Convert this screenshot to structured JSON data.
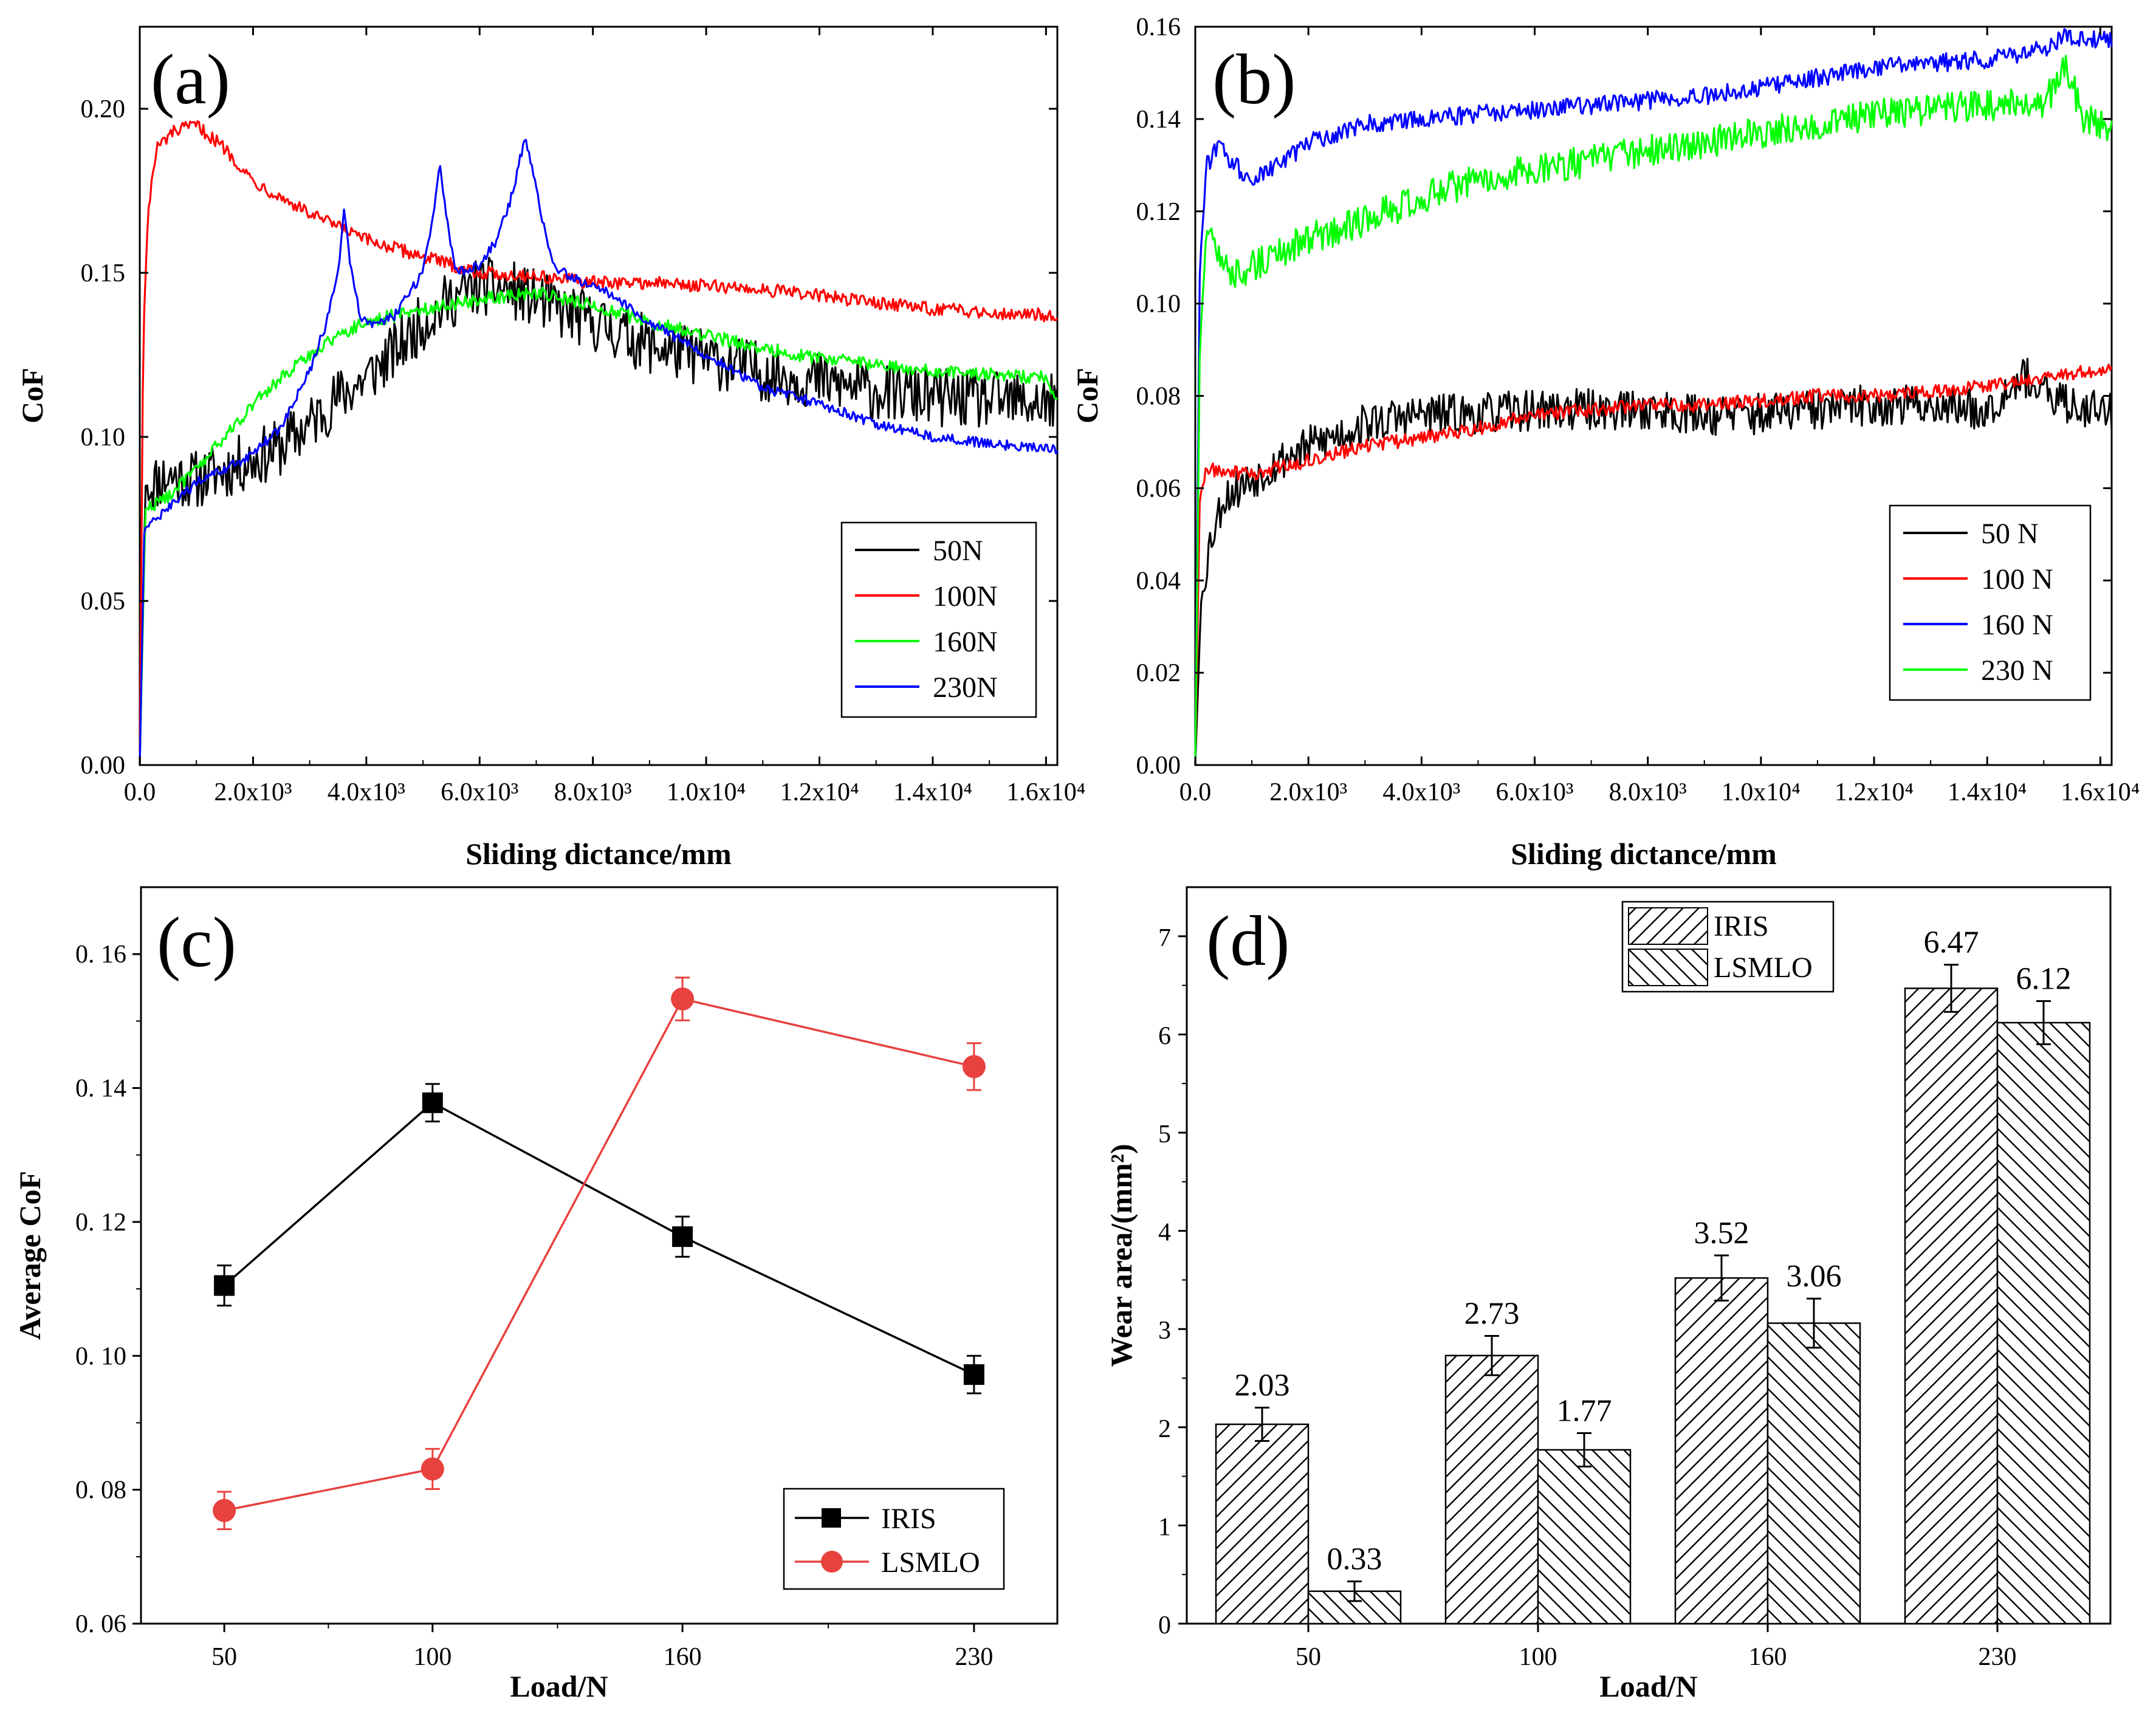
{
  "figure": {
    "panels": [
      "(a)",
      "(b)",
      "(c)",
      "(d)"
    ]
  },
  "chart_data": [
    {
      "id": "a",
      "type": "line",
      "title": "(a)",
      "xlabel": "Sliding dictance/mm",
      "ylabel": "CoF",
      "xlim": [
        0,
        16200
      ],
      "ylim": [
        0,
        0.225
      ],
      "xticks": [
        0,
        2000,
        4000,
        6000,
        8000,
        10000,
        12000,
        14000,
        16000
      ],
      "xtick_labels": [
        "0.0",
        "2.0x10³",
        "4.0x10³",
        "6.0x10³",
        "8.0x10³",
        "1.0x10⁴",
        "1.2x10⁴",
        "1.4x10⁴",
        "1.6x10⁴"
      ],
      "yticks": [
        0,
        0.05,
        0.1,
        0.15,
        0.2
      ],
      "ytick_labels": [
        "0.00",
        "0.05",
        "0.10",
        "0.15",
        "0.20"
      ],
      "legend_position": "bottom-right",
      "series": [
        {
          "name": "50N",
          "color": "#000000",
          "noise": 0.009,
          "x": [
            0,
            100,
            500,
            1000,
            1500,
            2000,
            2500,
            3000,
            3500,
            4000,
            4500,
            5000,
            5500,
            6000,
            6500,
            7000,
            7500,
            8000,
            9000,
            10000,
            11000,
            12000,
            13000,
            14000,
            15000,
            16200
          ],
          "y": [
            0.0,
            0.085,
            0.088,
            0.087,
            0.09,
            0.093,
            0.097,
            0.104,
            0.112,
            0.118,
            0.126,
            0.135,
            0.142,
            0.146,
            0.145,
            0.142,
            0.138,
            0.135,
            0.128,
            0.124,
            0.12,
            0.117,
            0.114,
            0.112,
            0.111,
            0.11
          ]
        },
        {
          "name": "100N",
          "color": "#ff0000",
          "noise": 0.002,
          "x": [
            0,
            60,
            150,
            300,
            600,
            1000,
            1500,
            2000,
            3000,
            4000,
            5000,
            6000,
            7000,
            8000,
            9000,
            10000,
            11000,
            12000,
            13000,
            14000,
            15000,
            16200
          ],
          "y": [
            0.0,
            0.13,
            0.17,
            0.188,
            0.193,
            0.195,
            0.188,
            0.178,
            0.168,
            0.16,
            0.155,
            0.15,
            0.149,
            0.147,
            0.147,
            0.146,
            0.145,
            0.143,
            0.141,
            0.139,
            0.138,
            0.137
          ]
        },
        {
          "name": "160N",
          "color": "#00ff00",
          "noise": 0.002,
          "x": [
            0,
            100,
            500,
            1000,
            1500,
            2000,
            2500,
            3000,
            3500,
            4000,
            5000,
            6000,
            7000,
            8000,
            9000,
            10000,
            11000,
            12000,
            13000,
            14000,
            15000,
            16000,
            16200
          ],
          "y": [
            0.0,
            0.078,
            0.082,
            0.09,
            0.1,
            0.11,
            0.118,
            0.125,
            0.131,
            0.135,
            0.139,
            0.142,
            0.144,
            0.14,
            0.135,
            0.131,
            0.127,
            0.124,
            0.122,
            0.12,
            0.119,
            0.118,
            0.11
          ]
        },
        {
          "name": "230N",
          "color": "#0000ff",
          "noise": 0.0015,
          "x": [
            0,
            80,
            500,
            1000,
            1500,
            2000,
            2500,
            3000,
            3300,
            3500,
            3600,
            3700,
            3900,
            4200,
            4500,
            5000,
            5200,
            5300,
            5450,
            5600,
            6000,
            6300,
            6600,
            6800,
            7000,
            7300,
            7700,
            8200,
            9000,
            10000,
            11000,
            12000,
            13000,
            14000,
            15000,
            16200
          ],
          "y": [
            0.0,
            0.072,
            0.078,
            0.086,
            0.09,
            0.095,
            0.103,
            0.12,
            0.135,
            0.15,
            0.169,
            0.155,
            0.136,
            0.134,
            0.137,
            0.15,
            0.17,
            0.184,
            0.162,
            0.15,
            0.152,
            0.16,
            0.175,
            0.192,
            0.175,
            0.152,
            0.148,
            0.145,
            0.135,
            0.125,
            0.115,
            0.11,
            0.104,
            0.1,
            0.098,
            0.096
          ]
        }
      ]
    },
    {
      "id": "b",
      "type": "line",
      "title": "(b)",
      "xlabel": "Sliding dictance/mm",
      "ylabel": "CoF",
      "xlim": [
        0,
        16200
      ],
      "ylim": [
        0,
        0.16
      ],
      "xticks": [
        0,
        2000,
        4000,
        6000,
        8000,
        10000,
        12000,
        14000,
        16000
      ],
      "xtick_labels": [
        "0.0",
        "2.0x10³",
        "4.0x10³",
        "6.0x10³",
        "8.0x10³",
        "1.0x10⁴",
        "1.2x10⁴",
        "1.4x10⁴",
        "1.6x10⁴"
      ],
      "yticks": [
        0,
        0.02,
        0.04,
        0.06,
        0.08,
        0.1,
        0.12,
        0.14,
        0.16
      ],
      "ytick_labels": [
        "0.00",
        "0.02",
        "0.04",
        "0.06",
        "0.08",
        "0.10",
        "0.12",
        "0.14",
        "0.16"
      ],
      "legend_position": "bottom-right",
      "series": [
        {
          "name": "50 N",
          "color": "#000000",
          "noise": 0.0045,
          "x": [
            0,
            100,
            250,
            500,
            1000,
            1500,
            2000,
            3000,
            4000,
            5000,
            6000,
            7000,
            8000,
            9000,
            10000,
            11000,
            12000,
            13000,
            14000,
            14600,
            15000,
            15500,
            16200
          ],
          "y": [
            0.0,
            0.035,
            0.048,
            0.058,
            0.062,
            0.066,
            0.069,
            0.074,
            0.076,
            0.076,
            0.077,
            0.077,
            0.077,
            0.076,
            0.076,
            0.077,
            0.078,
            0.078,
            0.077,
            0.085,
            0.08,
            0.078,
            0.077
          ]
        },
        {
          "name": "100 N",
          "color": "#ff0000",
          "noise": 0.0015,
          "x": [
            0,
            80,
            200,
            1000,
            2000,
            3000,
            4000,
            5000,
            6000,
            7000,
            8000,
            9000,
            10000,
            11000,
            12000,
            13000,
            14000,
            15000,
            16200
          ],
          "y": [
            0.0,
            0.058,
            0.064,
            0.063,
            0.066,
            0.069,
            0.071,
            0.073,
            0.076,
            0.077,
            0.078,
            0.078,
            0.079,
            0.08,
            0.08,
            0.081,
            0.082,
            0.084,
            0.086
          ]
        },
        {
          "name": "160 N",
          "color": "#0000ff",
          "noise": 0.002,
          "x": [
            0,
            80,
            200,
            400,
            700,
            1000,
            1500,
            2000,
            3000,
            4000,
            5000,
            6000,
            7000,
            8000,
            9000,
            10000,
            11000,
            12000,
            13000,
            14000,
            15000,
            15400,
            16200
          ],
          "y": [
            0.0,
            0.108,
            0.13,
            0.134,
            0.13,
            0.127,
            0.13,
            0.135,
            0.139,
            0.14,
            0.141,
            0.142,
            0.143,
            0.144,
            0.145,
            0.147,
            0.149,
            0.151,
            0.152,
            0.153,
            0.155,
            0.158,
            0.157
          ]
        },
        {
          "name": "230 N",
          "color": "#00ff00",
          "noise": 0.0035,
          "x": [
            0,
            80,
            200,
            400,
            700,
            1000,
            1500,
            2000,
            3000,
            4000,
            5000,
            6000,
            7000,
            8000,
            9000,
            10000,
            11000,
            12000,
            13000,
            14000,
            15000,
            15400,
            15700,
            16200
          ],
          "y": [
            0.0,
            0.09,
            0.117,
            0.11,
            0.106,
            0.108,
            0.111,
            0.114,
            0.118,
            0.123,
            0.127,
            0.129,
            0.131,
            0.133,
            0.135,
            0.137,
            0.139,
            0.141,
            0.142,
            0.143,
            0.143,
            0.152,
            0.14,
            0.138
          ]
        }
      ]
    },
    {
      "id": "c",
      "type": "line",
      "title": "(c)",
      "xlabel": "Load/N",
      "ylabel": "Average CoF",
      "categories": [
        "50",
        "100",
        "160",
        "230"
      ],
      "x": [
        50,
        100,
        160,
        230
      ],
      "xlim": [
        30,
        250
      ],
      "ylim": [
        0.06,
        0.17
      ],
      "yticks": [
        0.06,
        0.08,
        0.1,
        0.12,
        0.14,
        0.16
      ],
      "ytick_labels": [
        "0. 06",
        "0. 08",
        "0. 10",
        "0. 12",
        "0. 14",
        "0. 16"
      ],
      "legend_position": "bottom-right",
      "series": [
        {
          "name": "IRIS",
          "color": "#000000",
          "marker": "square",
          "values": [
            0.1105,
            0.1378,
            0.1178,
            0.0972
          ],
          "errors": [
            0.003,
            0.0028,
            0.003,
            0.0028
          ]
        },
        {
          "name": "LSMLO",
          "color": "#e8423f",
          "marker": "circle",
          "values": [
            0.0769,
            0.0831,
            0.1533,
            0.1432
          ],
          "errors": [
            0.0028,
            0.003,
            0.0032,
            0.0035
          ]
        }
      ]
    },
    {
      "id": "d",
      "type": "bar",
      "title": "(d)",
      "xlabel": "Load/N",
      "ylabel": "Wear area/(mm²)",
      "categories": [
        "50",
        "100",
        "160",
        "230"
      ],
      "ylim": [
        0,
        7.5
      ],
      "yticks": [
        0,
        1,
        2,
        3,
        4,
        5,
        6,
        7
      ],
      "ytick_labels": [
        "0",
        "1",
        "2",
        "3",
        "4",
        "5",
        "6",
        "7"
      ],
      "legend_position": "top-left",
      "series": [
        {
          "name": "IRIS",
          "pattern": "hatch-forward",
          "values": [
            2.03,
            2.73,
            3.52,
            6.47
          ],
          "labels": [
            "2.03",
            "2.73",
            "3.52",
            "6.47"
          ],
          "errors": [
            0.17,
            0.2,
            0.23,
            0.24
          ]
        },
        {
          "name": "LSMLO",
          "pattern": "hatch-backward",
          "values": [
            0.33,
            1.77,
            3.06,
            6.12
          ],
          "labels": [
            "0.33",
            "1.77",
            "3.06",
            "6.12"
          ],
          "errors": [
            0.1,
            0.17,
            0.25,
            0.22
          ]
        }
      ]
    }
  ]
}
